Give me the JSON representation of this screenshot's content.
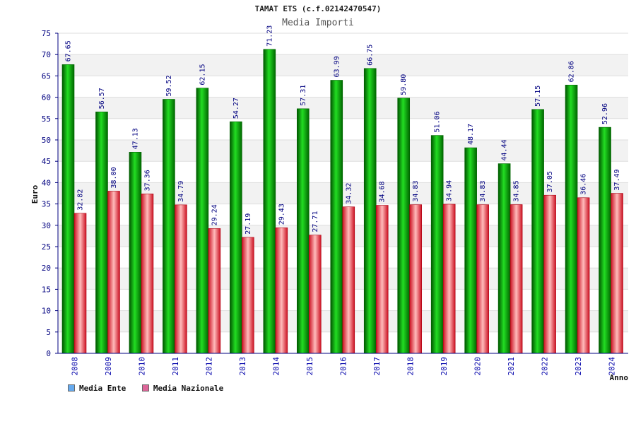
{
  "chart_data": {
    "type": "bar",
    "title": "TAMAT ETS (c.f.02142470547)",
    "subtitle": "Media Importi",
    "ylabel": "Euro",
    "xlabel": "Anno",
    "ylim": [
      0,
      75
    ],
    "yticks": [
      "0",
      "5",
      "10",
      "15",
      "20",
      "25",
      "30",
      "35",
      "40",
      "45",
      "50",
      "55",
      "60",
      "65",
      "70",
      "75"
    ],
    "categories": [
      "2008",
      "2009",
      "2010",
      "2011",
      "2012",
      "2013",
      "2014",
      "2015",
      "2016",
      "2017",
      "2018",
      "2019",
      "2020",
      "2021",
      "2022",
      "2023",
      "2024"
    ],
    "series": [
      {
        "name": "Media Ente",
        "values": [
          67.65,
          56.57,
          47.13,
          59.52,
          62.15,
          54.27,
          71.23,
          57.31,
          63.99,
          66.75,
          59.8,
          51.06,
          48.17,
          44.44,
          57.15,
          62.86,
          52.96
        ],
        "labels": [
          "67.65",
          "56.57",
          "47.13",
          "59.52",
          "62.15",
          "54.27",
          "71.23",
          "57.31",
          "63.99",
          "66.75",
          "59.80",
          "51.06",
          "48.17",
          "44.44",
          "57.15",
          "62.86",
          "52.96"
        ],
        "color": "#11aa11",
        "legend_color": "#66aaee"
      },
      {
        "name": "Media Nazionale",
        "values": [
          32.82,
          38.0,
          37.36,
          34.79,
          29.24,
          27.19,
          29.43,
          27.71,
          34.32,
          34.68,
          34.83,
          34.94,
          34.83,
          34.85,
          37.05,
          36.46,
          37.49
        ],
        "labels": [
          "32.82",
          "38.00",
          "37.36",
          "34.79",
          "29.24",
          "27.19",
          "29.43",
          "27.71",
          "34.32",
          "34.68",
          "34.83",
          "34.94",
          "34.83",
          "34.85",
          "37.05",
          "36.46",
          "37.49"
        ],
        "color": "#ee3344",
        "legend_color": "#dd6699"
      }
    ],
    "grid": true,
    "legend_position": "bottom-left"
  }
}
